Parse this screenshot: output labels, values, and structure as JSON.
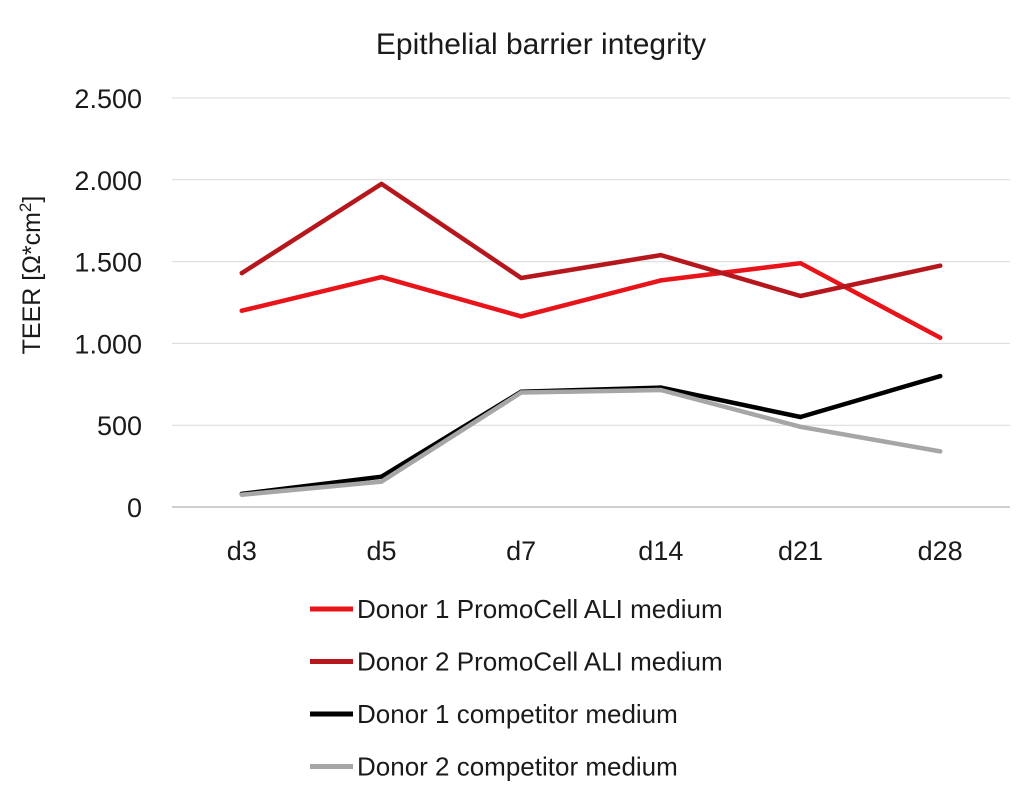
{
  "chart_data": {
    "type": "line",
    "title": "Epithelial barrier integrity",
    "ylabel_main": "TEER [Ω*cm",
    "ylabel_sup": "2",
    "ylabel_end": "]",
    "xlabel": "",
    "categories": [
      "d3",
      "d5",
      "d7",
      "d14",
      "d21",
      "d28"
    ],
    "ylim": [
      0,
      2500
    ],
    "yticks": [
      0,
      500,
      1000,
      1500,
      2000,
      2500
    ],
    "ytick_labels": [
      "0",
      "500",
      "1.000",
      "1.500",
      "2.000",
      "2.500"
    ],
    "grid": true,
    "legend_position": "bottom",
    "series": [
      {
        "name": "Donor 1 PromoCell ALI medium",
        "color": "#e8141a",
        "values": [
          1200,
          1405,
          1165,
          1385,
          1490,
          1035
        ]
      },
      {
        "name": "Donor 2 PromoCell ALI medium",
        "color": "#b5171d",
        "values": [
          1430,
          1975,
          1400,
          1540,
          1290,
          1475
        ]
      },
      {
        "name": "Donor 1 competitor medium",
        "color": "#000000",
        "values": [
          80,
          185,
          705,
          730,
          550,
          800
        ]
      },
      {
        "name": "Donor 2 competitor medium",
        "color": "#a6a6a6",
        "values": [
          75,
          155,
          700,
          715,
          490,
          340
        ]
      }
    ]
  }
}
